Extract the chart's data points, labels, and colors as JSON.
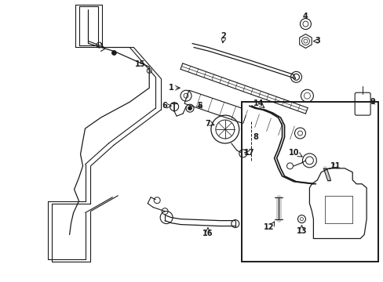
{
  "bg_color": "#ffffff",
  "lc": "#1a1a1a",
  "fig_w": 4.89,
  "fig_h": 3.6,
  "dpi": 100
}
